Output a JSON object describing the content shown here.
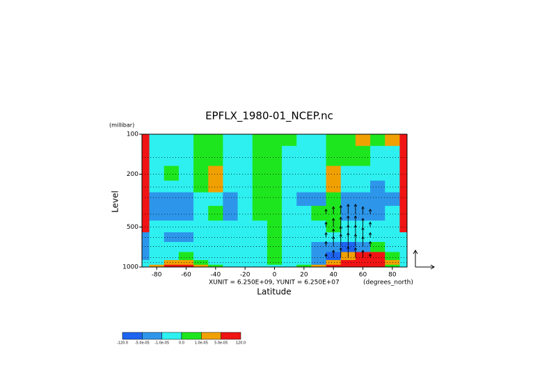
{
  "chart_data": {
    "type": "contour",
    "title": "EPFLX_1980-01_NCEP.nc",
    "y_unit": "(millibar)",
    "y_label": "Level",
    "x_label": "Latitude",
    "x_unit": "(degrees_north)",
    "vector_unit_label": "XUNIT = 6.250E+09, YUNIT = 6.250E+07",
    "yunit": 62500000,
    "xlim": [
      -90,
      90
    ],
    "xticks": [
      -80,
      -60,
      -40,
      -20,
      0,
      20,
      40,
      60,
      80
    ],
    "ylim": [
      1000,
      100
    ],
    "ylog": true,
    "yticks": [
      100,
      200,
      500,
      1000
    ],
    "lats": [
      -90,
      -80,
      -70,
      -60,
      -50,
      -40,
      -30,
      -20,
      -10,
      0,
      10,
      20,
      30,
      40,
      50,
      60,
      70,
      80,
      90
    ],
    "levels": [
      100,
      150,
      200,
      250,
      300,
      400,
      500,
      600,
      700,
      850,
      925,
      1000
    ],
    "field": [
      [
        0.0001,
        -5e-06,
        -5e-06,
        -5e-06,
        5e-06,
        5e-06,
        -5e-06,
        -5e-06,
        5e-06,
        5e-06,
        5e-06,
        -5e-06,
        -5e-06,
        5e-06,
        5e-06,
        3e-05,
        5e-06,
        3e-05,
        0.0001
      ],
      [
        0.0001,
        -5e-06,
        -5e-06,
        -5e-06,
        5e-06,
        5e-06,
        -5e-06,
        -5e-06,
        5e-06,
        5e-06,
        -5e-06,
        -5e-06,
        -5e-06,
        5e-06,
        5e-06,
        5e-06,
        -5e-06,
        -5e-06,
        0.0001
      ],
      [
        0.0001,
        -5e-06,
        5e-06,
        -5e-06,
        5e-06,
        3e-05,
        -5e-06,
        -5e-06,
        5e-06,
        5e-06,
        -5e-06,
        -5e-06,
        -5e-06,
        3e-05,
        -5e-06,
        -5e-06,
        -5e-06,
        -5e-06,
        0.0001
      ],
      [
        0.0001,
        -5e-06,
        -5e-06,
        -5e-06,
        5e-06,
        3e-05,
        -5e-06,
        -5e-06,
        5e-06,
        5e-06,
        -5e-06,
        -5e-06,
        -5e-06,
        3e-05,
        -5e-06,
        -5e-06,
        -3e-05,
        -5e-06,
        0.0001
      ],
      [
        0.0001,
        -3e-05,
        -3e-05,
        -3e-05,
        -5e-06,
        -5e-06,
        -3e-05,
        -5e-06,
        5e-06,
        5e-06,
        -5e-06,
        -3e-05,
        -3e-05,
        5e-06,
        -3e-05,
        -3e-05,
        -3e-05,
        -3e-05,
        0.0001
      ],
      [
        0.0001,
        -3e-05,
        -3e-05,
        -3e-05,
        -5e-06,
        5e-06,
        -3e-05,
        -5e-06,
        5e-06,
        5e-06,
        -5e-06,
        -5e-06,
        5e-06,
        5e-06,
        -3e-05,
        -3e-05,
        -3e-05,
        -5e-06,
        0.0001
      ],
      [
        0.0001,
        -5e-06,
        -5e-06,
        -5e-06,
        -5e-06,
        -5e-06,
        -5e-06,
        -5e-06,
        -5e-06,
        5e-06,
        -5e-06,
        -5e-06,
        -5e-06,
        5e-06,
        -5e-06,
        -5e-06,
        -5e-06,
        -5e-06,
        0.0001
      ],
      [
        -3e-05,
        -5e-06,
        -3e-05,
        -3e-05,
        -5e-06,
        -5e-06,
        -5e-06,
        -5e-06,
        -5e-06,
        5e-06,
        -5e-06,
        -5e-06,
        -5e-06,
        -5e-06,
        -5e-06,
        -5e-06,
        -5e-06,
        -5e-06,
        -5e-06
      ],
      [
        -3e-05,
        -5e-06,
        -5e-06,
        -5e-06,
        -5e-06,
        -5e-06,
        -5e-06,
        -5e-06,
        -5e-06,
        5e-06,
        -5e-06,
        -5e-06,
        -3e-05,
        -3e-05,
        -0.0001,
        -3e-05,
        5e-06,
        -5e-06,
        -5e-06
      ],
      [
        -3e-05,
        -5e-06,
        -5e-06,
        5e-06,
        -5e-06,
        -5e-06,
        -5e-06,
        -5e-06,
        -5e-06,
        5e-06,
        -5e-06,
        -5e-06,
        -3e-05,
        -0.0001,
        3e-05,
        0.0001,
        0.0001,
        5e-06,
        -5e-06
      ],
      [
        -5e-06,
        -5e-06,
        3e-05,
        3e-05,
        5e-06,
        -5e-06,
        -5e-06,
        -5e-06,
        -5e-06,
        5e-06,
        -5e-06,
        -5e-06,
        -3e-05,
        3e-05,
        0.0001,
        0.0001,
        0.0001,
        3e-05,
        -5e-06
      ],
      [
        -5e-06,
        3e-05,
        0.0001,
        0.0001,
        3e-05,
        5e-06,
        -5e-06,
        -5e-06,
        -5e-06,
        -5e-06,
        -5e-06,
        5e-06,
        3e-05,
        0.0001,
        0.0001,
        0.0001,
        0.0001,
        5e-06,
        -5e-06
      ]
    ],
    "contour_levels": [
      {
        "value": -120,
        "label": "-120.0"
      },
      {
        "value": -5e-05,
        "label": "-5.0e-05"
      },
      {
        "value": -1e-05,
        "label": "-1.0e-05"
      },
      {
        "value": 0,
        "label": "0.0"
      },
      {
        "value": 1e-05,
        "label": "1.0e-05"
      },
      {
        "value": 5e-05,
        "label": "5.0e-05"
      },
      {
        "value": 120,
        "label": "120.0"
      }
    ],
    "colors": [
      "#1e64f0",
      "#2d96ea",
      "#2ef0f0",
      "#1ee61e",
      "#f0a000",
      "#f01414"
    ],
    "vectors": {
      "lat": [
        35,
        40,
        45,
        50,
        55,
        60,
        65,
        35,
        40,
        45,
        50,
        55,
        60,
        65,
        35,
        40,
        45,
        50,
        55,
        60,
        65,
        35,
        40,
        45,
        50,
        55,
        60,
        65,
        35,
        40,
        45,
        50,
        55,
        60,
        65
      ],
      "level": [
        400,
        400,
        400,
        400,
        400,
        400,
        400,
        500,
        500,
        500,
        500,
        500,
        500,
        500,
        600,
        600,
        600,
        600,
        600,
        600,
        600,
        700,
        700,
        700,
        700,
        700,
        700,
        700,
        850,
        850,
        850,
        850,
        850,
        850,
        850
      ],
      "w": [
        20000000,
        30000000,
        35000000,
        40000000,
        40000000,
        30000000,
        20000000,
        20000000,
        35000000,
        40000000,
        45000000,
        45000000,
        35000000,
        20000000,
        20000000,
        35000000,
        45000000,
        50000000,
        50000000,
        40000000,
        20000000,
        20000000,
        40000000,
        50000000,
        55000000,
        50000000,
        40000000,
        20000000,
        15000000,
        30000000,
        40000000,
        45000000,
        40000000,
        30000000,
        15000000
      ]
    }
  }
}
